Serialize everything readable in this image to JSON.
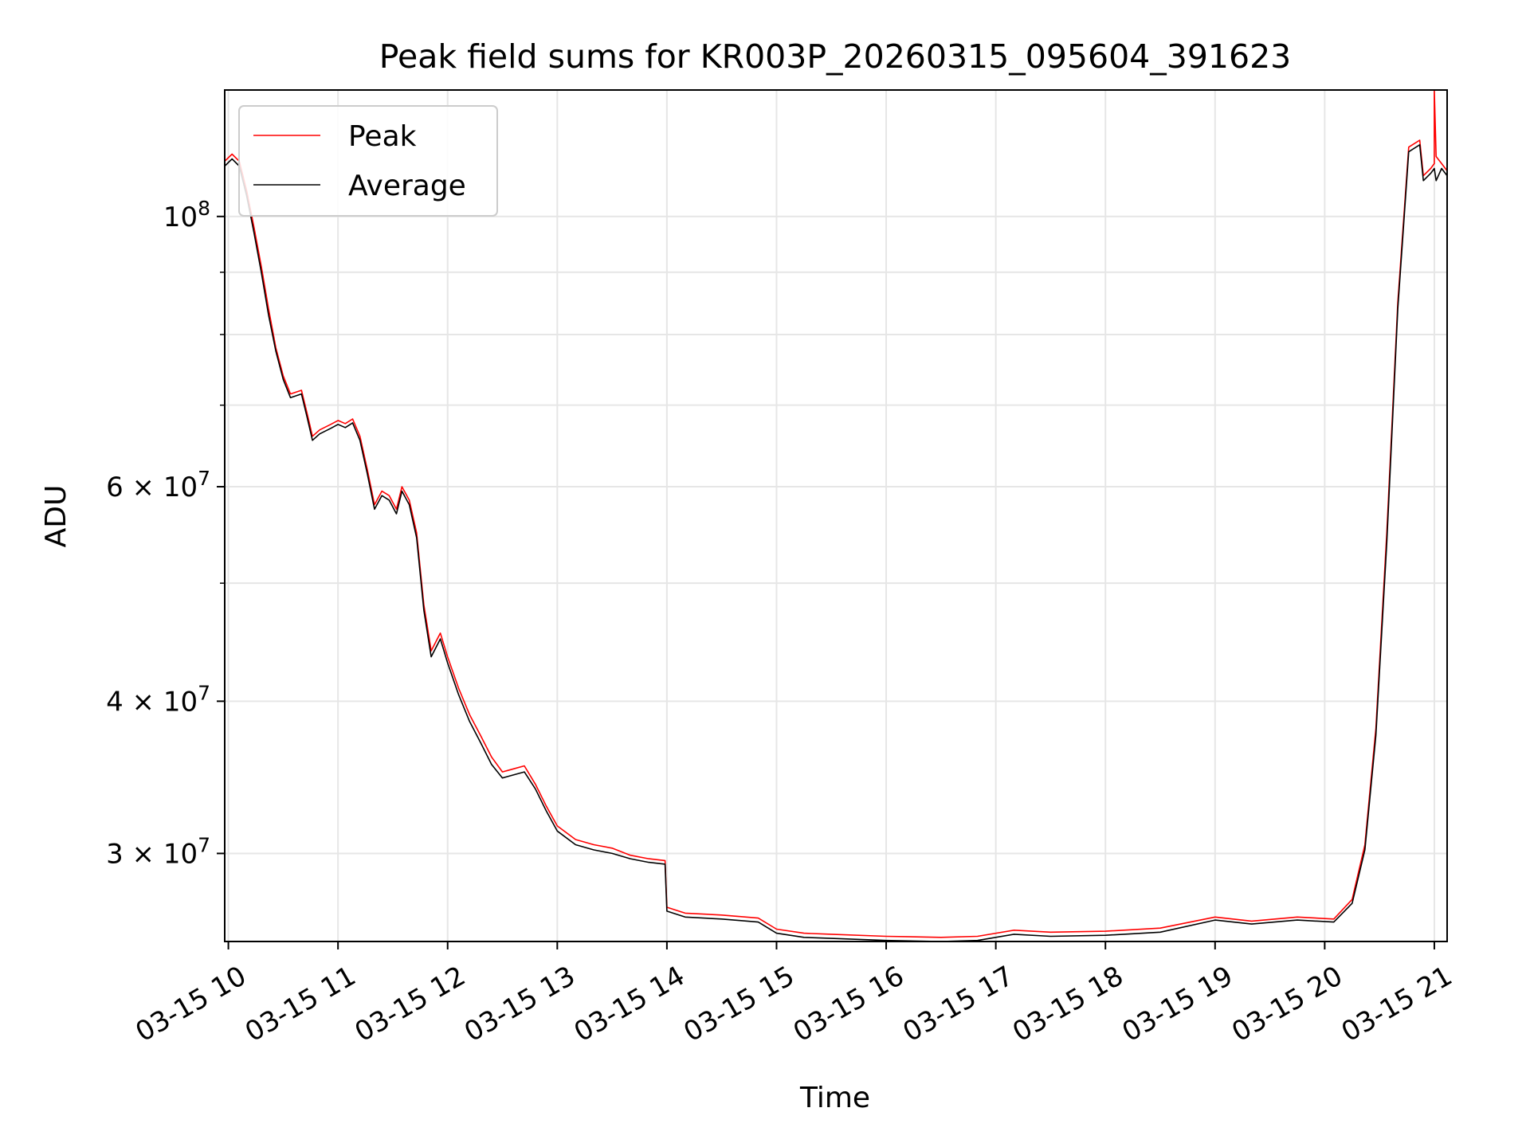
{
  "chart_data": {
    "type": "line",
    "title": "Peak field sums for KR003P_20260315_095604_391623",
    "xlabel": "Time",
    "ylabel": "ADU",
    "xscale": "time",
    "yscale": "log",
    "xlim": [
      "2026-03-15 09:58",
      "2026-03-15 21:07"
    ],
    "ylim": [
      25400000,
      127000000
    ],
    "grid": true,
    "legend_position": "top-left",
    "x_ticks": [
      {
        "t": "2026-03-15 10:00",
        "label": "03-15 10"
      },
      {
        "t": "2026-03-15 11:00",
        "label": "03-15 11"
      },
      {
        "t": "2026-03-15 12:00",
        "label": "03-15 12"
      },
      {
        "t": "2026-03-15 13:00",
        "label": "03-15 13"
      },
      {
        "t": "2026-03-15 14:00",
        "label": "03-15 14"
      },
      {
        "t": "2026-03-15 15:00",
        "label": "03-15 15"
      },
      {
        "t": "2026-03-15 16:00",
        "label": "03-15 16"
      },
      {
        "t": "2026-03-15 17:00",
        "label": "03-15 17"
      },
      {
        "t": "2026-03-15 18:00",
        "label": "03-15 18"
      },
      {
        "t": "2026-03-15 19:00",
        "label": "03-15 19"
      },
      {
        "t": "2026-03-15 20:00",
        "label": "03-15 20"
      },
      {
        "t": "2026-03-15 21:00",
        "label": "03-15 21"
      }
    ],
    "y_major_ticks": [
      {
        "value": 30000000,
        "base": "3",
        "exp": "7"
      },
      {
        "value": 40000000,
        "base": "4",
        "exp": "7"
      },
      {
        "value": 60000000,
        "base": "6",
        "exp": "7"
      },
      {
        "value": 100000000,
        "base": "",
        "exp": "8"
      }
    ],
    "y_minor_ticks": [
      50000000,
      70000000,
      80000000,
      90000000
    ],
    "series": [
      {
        "name": "Peak",
        "color": "#ff0000",
        "points": [
          [
            "2026-03-15 09:58",
            111000000
          ],
          [
            "2026-03-15 10:02",
            112500000
          ],
          [
            "2026-03-15 10:06",
            111000000
          ],
          [
            "2026-03-15 10:10",
            105000000
          ],
          [
            "2026-03-15 10:14",
            98000000
          ],
          [
            "2026-03-15 10:18",
            91000000
          ],
          [
            "2026-03-15 10:22",
            84000000
          ],
          [
            "2026-03-15 10:26",
            78000000
          ],
          [
            "2026-03-15 10:30",
            74000000
          ],
          [
            "2026-03-15 10:34",
            71500000
          ],
          [
            "2026-03-15 10:40",
            72000000
          ],
          [
            "2026-03-15 10:43",
            69000000
          ],
          [
            "2026-03-15 10:46",
            66000000
          ],
          [
            "2026-03-15 10:50",
            66800000
          ],
          [
            "2026-03-15 10:56",
            67500000
          ],
          [
            "2026-03-15 11:00",
            68000000
          ],
          [
            "2026-03-15 11:04",
            67600000
          ],
          [
            "2026-03-15 11:08",
            68200000
          ],
          [
            "2026-03-15 11:12",
            66000000
          ],
          [
            "2026-03-15 11:16",
            62000000
          ],
          [
            "2026-03-15 11:20",
            58000000
          ],
          [
            "2026-03-15 11:24",
            59500000
          ],
          [
            "2026-03-15 11:28",
            59000000
          ],
          [
            "2026-03-15 11:32",
            57500000
          ],
          [
            "2026-03-15 11:35",
            60000000
          ],
          [
            "2026-03-15 11:39",
            58500000
          ],
          [
            "2026-03-15 11:43",
            55000000
          ],
          [
            "2026-03-15 11:47",
            48000000
          ],
          [
            "2026-03-15 11:51",
            44000000
          ],
          [
            "2026-03-15 11:56",
            45500000
          ],
          [
            "2026-03-15 12:00",
            43500000
          ],
          [
            "2026-03-15 12:06",
            41000000
          ],
          [
            "2026-03-15 12:12",
            39000000
          ],
          [
            "2026-03-15 12:18",
            37500000
          ],
          [
            "2026-03-15 12:24",
            36000000
          ],
          [
            "2026-03-15 12:30",
            35000000
          ],
          [
            "2026-03-15 12:36",
            35200000
          ],
          [
            "2026-03-15 12:42",
            35400000
          ],
          [
            "2026-03-15 12:48",
            34200000
          ],
          [
            "2026-03-15 12:54",
            32800000
          ],
          [
            "2026-03-15 13:00",
            31600000
          ],
          [
            "2026-03-15 13:10",
            30800000
          ],
          [
            "2026-03-15 13:20",
            30500000
          ],
          [
            "2026-03-15 13:30",
            30300000
          ],
          [
            "2026-03-15 13:40",
            29900000
          ],
          [
            "2026-03-15 13:50",
            29700000
          ],
          [
            "2026-03-15 13:59",
            29600000
          ],
          [
            "2026-03-15 14:00",
            27100000
          ],
          [
            "2026-03-15 14:10",
            26800000
          ],
          [
            "2026-03-15 14:30",
            26700000
          ],
          [
            "2026-03-15 14:50",
            26550000
          ],
          [
            "2026-03-15 15:00",
            26000000
          ],
          [
            "2026-03-15 15:15",
            25800000
          ],
          [
            "2026-03-15 15:30",
            25750000
          ],
          [
            "2026-03-15 16:00",
            25650000
          ],
          [
            "2026-03-15 16:30",
            25600000
          ],
          [
            "2026-03-15 16:50",
            25650000
          ],
          [
            "2026-03-15 17:10",
            25950000
          ],
          [
            "2026-03-15 17:30",
            25850000
          ],
          [
            "2026-03-15 18:00",
            25900000
          ],
          [
            "2026-03-15 18:30",
            26050000
          ],
          [
            "2026-03-15 19:00",
            26600000
          ],
          [
            "2026-03-15 19:20",
            26400000
          ],
          [
            "2026-03-15 19:45",
            26600000
          ],
          [
            "2026-03-15 20:05",
            26500000
          ],
          [
            "2026-03-15 20:15",
            27500000
          ],
          [
            "2026-03-15 20:22",
            30500000
          ],
          [
            "2026-03-15 20:28",
            38000000
          ],
          [
            "2026-03-15 20:34",
            55000000
          ],
          [
            "2026-03-15 20:40",
            85000000
          ],
          [
            "2026-03-15 20:46",
            114000000
          ],
          [
            "2026-03-15 20:52",
            115500000
          ],
          [
            "2026-03-15 20:54",
            108000000
          ],
          [
            "2026-03-15 20:58",
            109500000
          ],
          [
            "2026-03-15 21:00",
            110500000
          ],
          [
            "2026-03-15 21:00",
            127000000
          ],
          [
            "2026-03-15 21:01",
            112000000
          ],
          [
            "2026-03-15 21:04",
            110500000
          ],
          [
            "2026-03-15 21:07",
            109000000
          ]
        ]
      },
      {
        "name": "Average",
        "color": "#000000",
        "points": [
          [
            "2026-03-15 09:58",
            110000000
          ],
          [
            "2026-03-15 10:02",
            111500000
          ],
          [
            "2026-03-15 10:06",
            110000000
          ],
          [
            "2026-03-15 10:10",
            104000000
          ],
          [
            "2026-03-15 10:14",
            97000000
          ],
          [
            "2026-03-15 10:18",
            90000000
          ],
          [
            "2026-03-15 10:22",
            83000000
          ],
          [
            "2026-03-15 10:26",
            77500000
          ],
          [
            "2026-03-15 10:30",
            73500000
          ],
          [
            "2026-03-15 10:34",
            71000000
          ],
          [
            "2026-03-15 10:40",
            71500000
          ],
          [
            "2026-03-15 10:43",
            68500000
          ],
          [
            "2026-03-15 10:46",
            65500000
          ],
          [
            "2026-03-15 10:50",
            66300000
          ],
          [
            "2026-03-15 10:56",
            67000000
          ],
          [
            "2026-03-15 11:00",
            67500000
          ],
          [
            "2026-03-15 11:04",
            67100000
          ],
          [
            "2026-03-15 11:08",
            67700000
          ],
          [
            "2026-03-15 11:12",
            65500000
          ],
          [
            "2026-03-15 11:16",
            61500000
          ],
          [
            "2026-03-15 11:20",
            57500000
          ],
          [
            "2026-03-15 11:24",
            59000000
          ],
          [
            "2026-03-15 11:28",
            58500000
          ],
          [
            "2026-03-15 11:32",
            57000000
          ],
          [
            "2026-03-15 11:35",
            59500000
          ],
          [
            "2026-03-15 11:39",
            58000000
          ],
          [
            "2026-03-15 11:43",
            54500000
          ],
          [
            "2026-03-15 11:47",
            47500000
          ],
          [
            "2026-03-15 11:51",
            43500000
          ],
          [
            "2026-03-15 11:56",
            45000000
          ],
          [
            "2026-03-15 12:00",
            43000000
          ],
          [
            "2026-03-15 12:06",
            40500000
          ],
          [
            "2026-03-15 12:12",
            38500000
          ],
          [
            "2026-03-15 12:18",
            37000000
          ],
          [
            "2026-03-15 12:24",
            35500000
          ],
          [
            "2026-03-15 12:30",
            34600000
          ],
          [
            "2026-03-15 12:36",
            34800000
          ],
          [
            "2026-03-15 12:42",
            35000000
          ],
          [
            "2026-03-15 12:48",
            33900000
          ],
          [
            "2026-03-15 12:54",
            32500000
          ],
          [
            "2026-03-15 13:00",
            31300000
          ],
          [
            "2026-03-15 13:10",
            30500000
          ],
          [
            "2026-03-15 13:20",
            30200000
          ],
          [
            "2026-03-15 13:30",
            30000000
          ],
          [
            "2026-03-15 13:40",
            29700000
          ],
          [
            "2026-03-15 13:50",
            29500000
          ],
          [
            "2026-03-15 13:59",
            29400000
          ],
          [
            "2026-03-15 14:00",
            26900000
          ],
          [
            "2026-03-15 14:10",
            26600000
          ],
          [
            "2026-03-15 14:30",
            26500000
          ],
          [
            "2026-03-15 14:50",
            26350000
          ],
          [
            "2026-03-15 15:00",
            25800000
          ],
          [
            "2026-03-15 15:15",
            25600000
          ],
          [
            "2026-03-15 15:30",
            25550000
          ],
          [
            "2026-03-15 16:00",
            25450000
          ],
          [
            "2026-03-15 16:30",
            25400000
          ],
          [
            "2026-03-15 16:50",
            25450000
          ],
          [
            "2026-03-15 17:10",
            25750000
          ],
          [
            "2026-03-15 17:30",
            25650000
          ],
          [
            "2026-03-15 18:00",
            25700000
          ],
          [
            "2026-03-15 18:30",
            25850000
          ],
          [
            "2026-03-15 19:00",
            26450000
          ],
          [
            "2026-03-15 19:20",
            26250000
          ],
          [
            "2026-03-15 19:45",
            26450000
          ],
          [
            "2026-03-15 20:05",
            26350000
          ],
          [
            "2026-03-15 20:15",
            27300000
          ],
          [
            "2026-03-15 20:22",
            30200000
          ],
          [
            "2026-03-15 20:28",
            37500000
          ],
          [
            "2026-03-15 20:34",
            54000000
          ],
          [
            "2026-03-15 20:40",
            84000000
          ],
          [
            "2026-03-15 20:46",
            113000000
          ],
          [
            "2026-03-15 20:52",
            114500000
          ],
          [
            "2026-03-15 20:54",
            107000000
          ],
          [
            "2026-03-15 20:58",
            108500000
          ],
          [
            "2026-03-15 21:00",
            109500000
          ],
          [
            "2026-03-15 21:01",
            107000000
          ],
          [
            "2026-03-15 21:04",
            109500000
          ],
          [
            "2026-03-15 21:07",
            108000000
          ]
        ]
      }
    ]
  }
}
